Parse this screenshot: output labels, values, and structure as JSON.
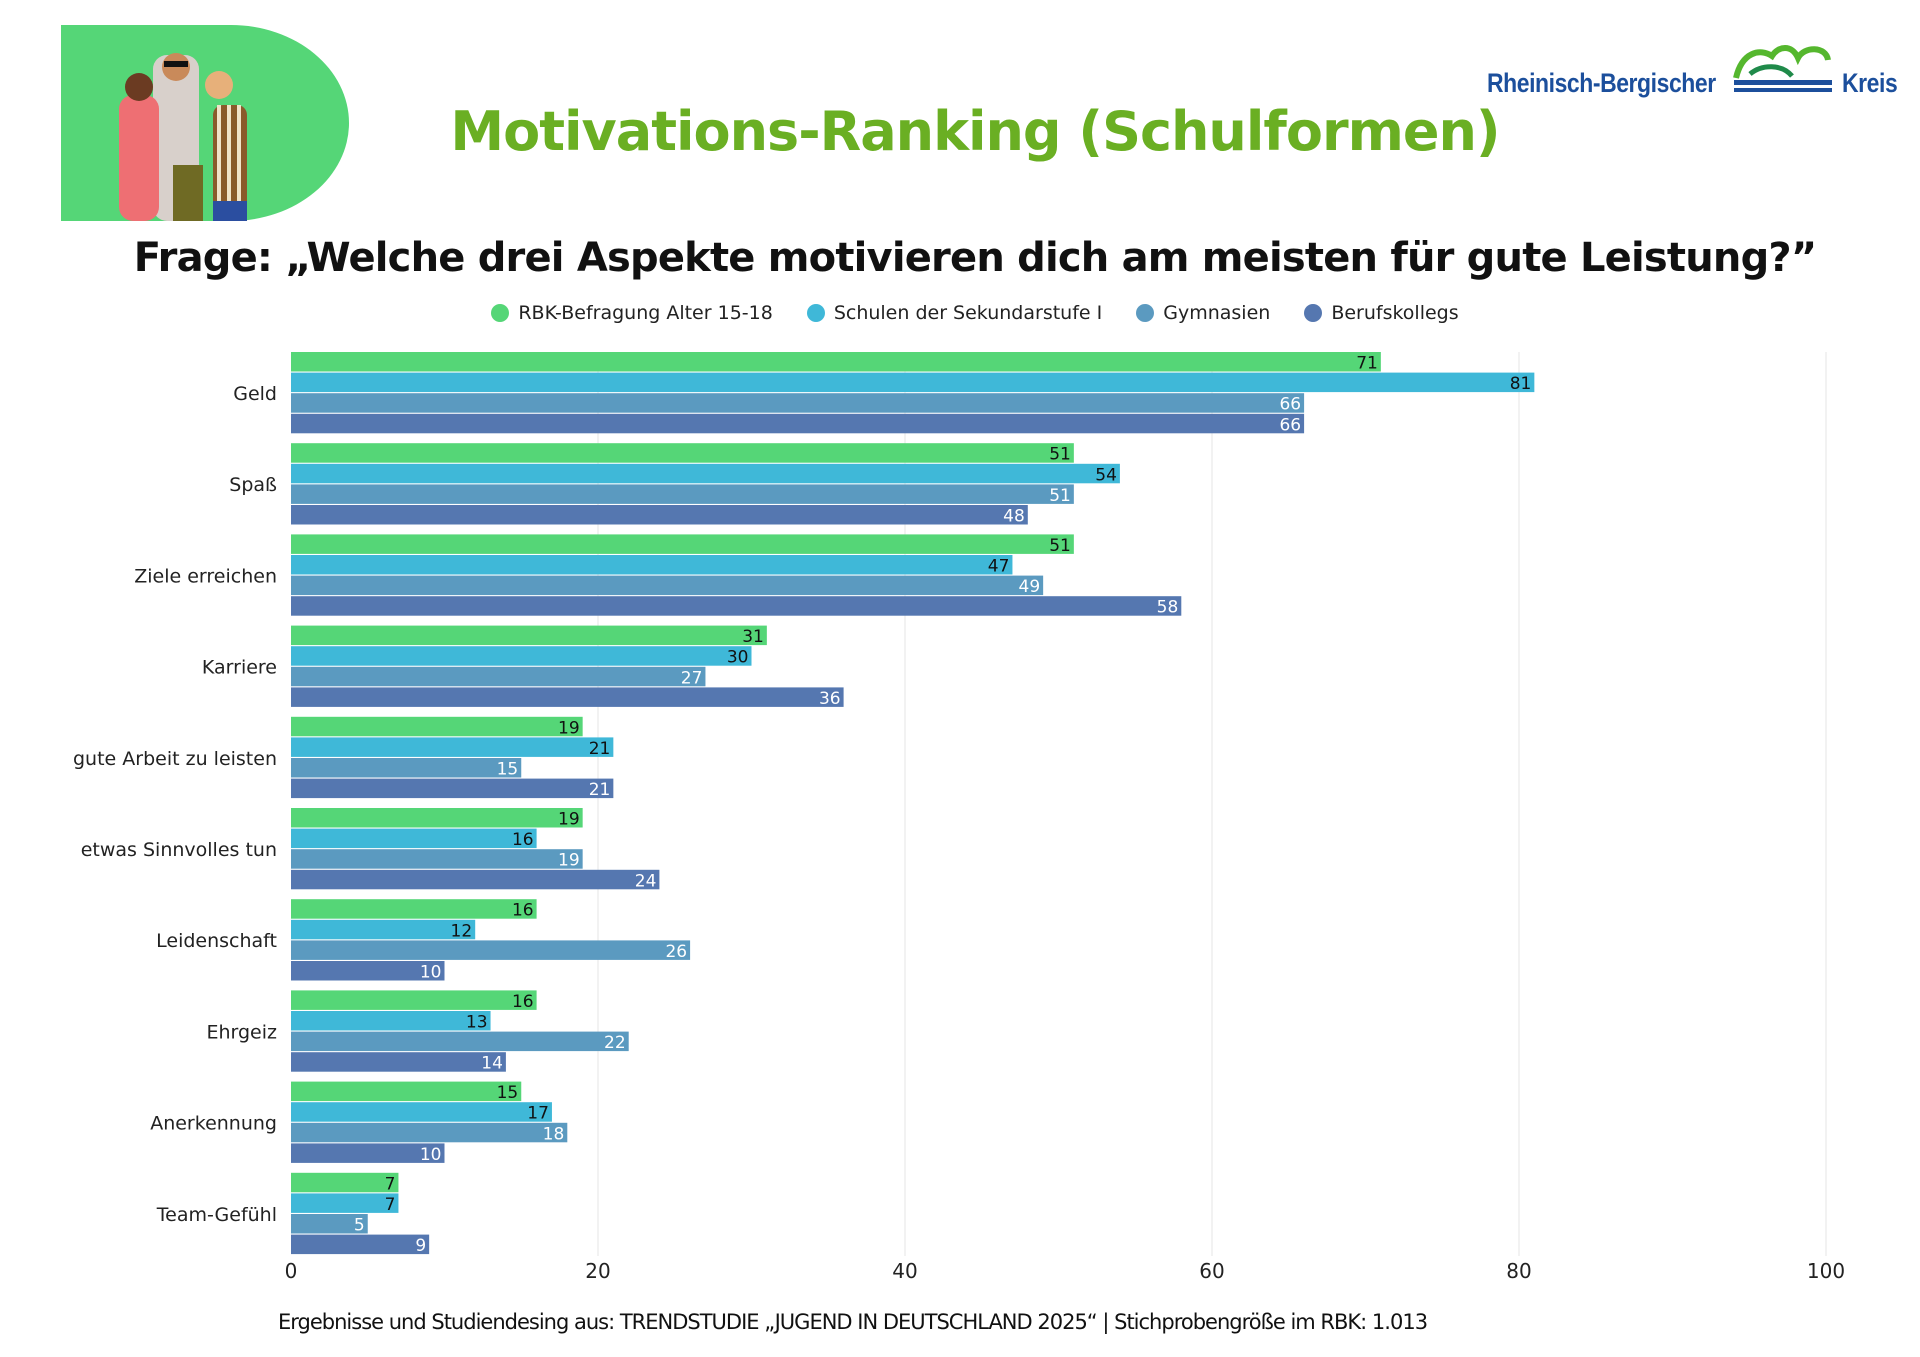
{
  "title": "Motivations-Ranking (Schulformen)",
  "logo": {
    "left": "Rheinisch-Bergischer",
    "right": "Kreis"
  },
  "colors": {
    "series": [
      "#55d677",
      "#3fb8d8",
      "#5b9ac0",
      "#5577b0"
    ],
    "title": "#6aaf23",
    "logo": "#1c4f9c"
  },
  "footer": "Ergebnisse und Studiendesing aus: TRENDSTUDIE „JUGEND IN DEUTSCHLAND 2025“  | Stichprobengröße im RBK:  1.013",
  "chart_data": {
    "type": "bar",
    "orientation": "horizontal",
    "title": "Frage: „Welche drei Aspekte motivieren dich am meisten für gute Leistung?”",
    "categories": [
      "Geld",
      "Spaß",
      "Ziele erreichen",
      "Karriere",
      "gute Arbeit zu leisten",
      "etwas Sinnvolles tun",
      "Leidenschaft",
      "Ehrgeiz",
      "Anerkennung",
      "Team-Gefühl"
    ],
    "series": [
      {
        "name": "RBK-Befragung Alter 15-18",
        "values": [
          71,
          51,
          51,
          31,
          19,
          19,
          16,
          16,
          15,
          7
        ]
      },
      {
        "name": "Schulen der Sekundarstufe I",
        "values": [
          81,
          54,
          47,
          30,
          21,
          16,
          12,
          13,
          17,
          7
        ]
      },
      {
        "name": "Gymnasien",
        "values": [
          66,
          51,
          49,
          27,
          15,
          19,
          26,
          22,
          18,
          5
        ]
      },
      {
        "name": "Berufskollegs",
        "values": [
          66,
          48,
          58,
          36,
          21,
          24,
          10,
          14,
          10,
          9
        ]
      }
    ],
    "xlim": [
      0,
      100
    ],
    "xticks": [
      "0",
      "20",
      "40",
      "60",
      "80",
      "100"
    ],
    "grid": true,
    "legend": "top-center"
  }
}
